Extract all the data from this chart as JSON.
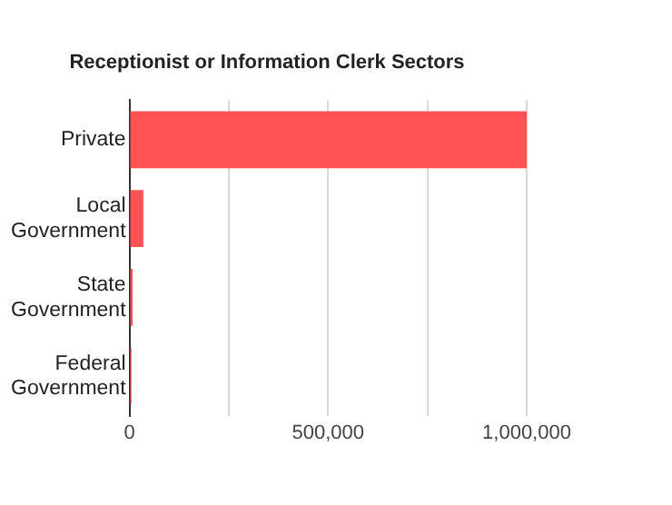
{
  "chart_data": {
    "type": "bar",
    "orientation": "horizontal",
    "title": "Receptionist or Information Clerk Sectors",
    "categories": [
      "Private",
      "Local\nGovernment",
      "State\nGovernment",
      "Federal\nGovernment"
    ],
    "values": [
      1000000,
      35000,
      8000,
      5000
    ],
    "color": "#fe5254",
    "xlim": [
      0,
      1000000
    ],
    "xticks": [
      0,
      {
        "value": 250000,
        "label": null
      },
      {
        "value": 500000,
        "label": "500,000"
      },
      {
        "value": 750000,
        "label": null
      },
      {
        "value": 1000000,
        "label": "1,000,000"
      }
    ],
    "grid": "x",
    "legend": false
  }
}
